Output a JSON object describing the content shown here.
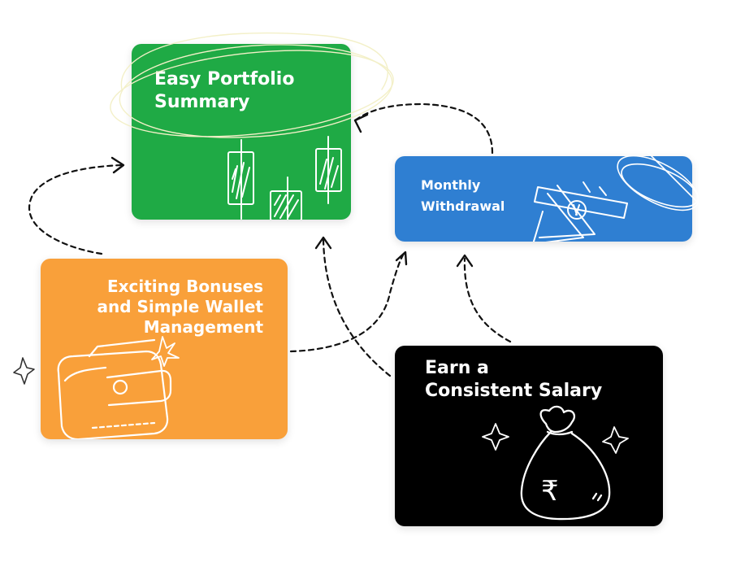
{
  "cards": {
    "portfolio": {
      "label_line1": "Easy Portfolio",
      "label_line2": "Summary",
      "color": "#1faa45"
    },
    "withdrawal": {
      "label_line1": "Monthly",
      "label_line2": "Withdrawal",
      "color": "#2f7fd2"
    },
    "bonuses": {
      "label_line1": "Exciting Bonuses",
      "label_line2": "and Simple Wallet",
      "label_line3": "Management",
      "color": "#f9a03a"
    },
    "salary": {
      "label_line1": "Earn a",
      "label_line2": "Consistent Salary",
      "color": "#000000"
    }
  },
  "icons": {
    "portfolio": "candlestick-chart-icon",
    "withdrawal": "cash-withdrawal-icon",
    "bonuses": "wallet-icon",
    "salary": "money-bag-icon"
  },
  "currency_symbol": "₹"
}
